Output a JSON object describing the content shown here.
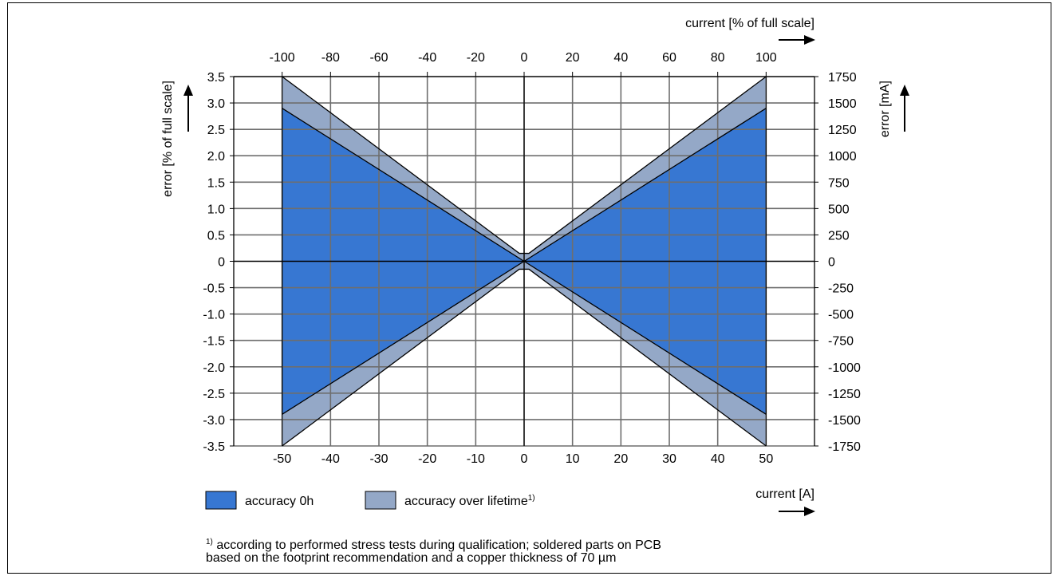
{
  "chart_data": {
    "type": "area",
    "x_bottom": {
      "label": "current [A]",
      "ticks": [
        -50,
        -40,
        -30,
        -20,
        -10,
        0,
        10,
        20,
        30,
        40,
        50
      ],
      "range": [
        -60,
        60
      ]
    },
    "x_top": {
      "label": "current [% of full scale]",
      "ticks": [
        -100,
        -80,
        -60,
        -40,
        -20,
        0,
        20,
        40,
        60,
        80,
        100
      ],
      "range": [
        -120,
        120
      ]
    },
    "y_left": {
      "label": "error [% of full scale]",
      "ticks": [
        "3.5",
        "3.0",
        "2.5",
        "2.0",
        "1.5",
        "1.0",
        "0.5",
        "0",
        "-0.5",
        "-1.0",
        "-1.5",
        "-2.0",
        "-2.5",
        "-3.0",
        "-3.5"
      ],
      "range": [
        -3.5,
        3.5
      ]
    },
    "y_right": {
      "label": "error [mA]",
      "ticks": [
        "1750",
        "1500",
        "1250",
        "1000",
        "750",
        "500",
        "250",
        "0",
        "-250",
        "-500",
        "-750",
        "-1000",
        "-1250",
        "-1500",
        "-1750"
      ],
      "range": [
        -1750,
        1750
      ]
    },
    "series": [
      {
        "name": "accuracy over lifetime",
        "legend_sup": "1)",
        "color": "#94a8c7",
        "upper": [
          [
            -50,
            3.5
          ],
          [
            -1,
            0.15
          ],
          [
            1,
            0.15
          ],
          [
            50,
            3.5
          ]
        ],
        "lower": [
          [
            -50,
            -3.5
          ],
          [
            -1,
            -0.15
          ],
          [
            1,
            -0.15
          ],
          [
            50,
            -3.5
          ]
        ]
      },
      {
        "name": "accuracy 0h",
        "color": "#3777d2",
        "upper": [
          [
            -50,
            2.9
          ],
          [
            0,
            0
          ],
          [
            50,
            2.9
          ]
        ],
        "lower": [
          [
            -50,
            -2.9
          ],
          [
            0,
            0
          ],
          [
            50,
            -2.9
          ]
        ]
      }
    ],
    "grid": true,
    "legend": "bottom-left",
    "legend_order": [
      "accuracy 0h",
      "accuracy over lifetime"
    ]
  },
  "footnote": {
    "marker": "1)",
    "line1": "according to performed stress tests during qualification; soldered parts on PCB",
    "line2": "based on the footprint recommendation and a copper thickness of 70 µm"
  },
  "colors": {
    "grid": "#6e6e6e",
    "axis": "#000000"
  }
}
